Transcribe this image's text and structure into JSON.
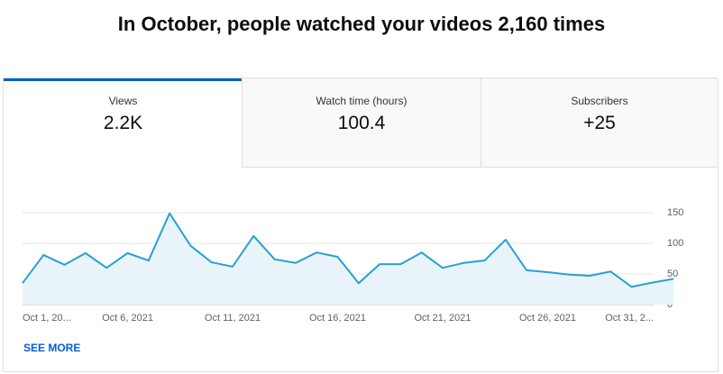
{
  "header": {
    "title": "In October, people watched your videos 2,160 times"
  },
  "tabs": [
    {
      "label": "Views",
      "value": "2.2K"
    },
    {
      "label": "Watch time (hours)",
      "value": "100.4"
    },
    {
      "label": "Subscribers",
      "value": "+25"
    }
  ],
  "chart_data": {
    "type": "line",
    "area": true,
    "color": "#2aa0d0",
    "fill_color": "#e8f4fa",
    "categories": [
      "Oct 1, 20...",
      null,
      null,
      null,
      null,
      "Oct 6, 2021",
      null,
      null,
      null,
      null,
      "Oct 11, 2021",
      null,
      null,
      null,
      null,
      "Oct 16, 2021",
      null,
      null,
      null,
      null,
      "Oct 21, 2021",
      null,
      null,
      null,
      null,
      "Oct 26, 2021",
      null,
      null,
      null,
      null,
      "Oct 31, 2...",
      null
    ],
    "values": [
      35,
      81,
      65,
      84,
      60,
      84,
      72,
      149,
      96,
      69,
      62,
      112,
      74,
      68,
      85,
      78,
      35,
      66,
      66,
      85,
      60,
      68,
      72,
      106,
      56,
      53,
      49,
      47,
      54,
      29,
      36,
      42
    ],
    "ylim": [
      0,
      150
    ],
    "yticks": [
      0,
      50,
      100,
      150
    ],
    "grid": true
  },
  "link": {
    "label": "SEE MORE"
  }
}
